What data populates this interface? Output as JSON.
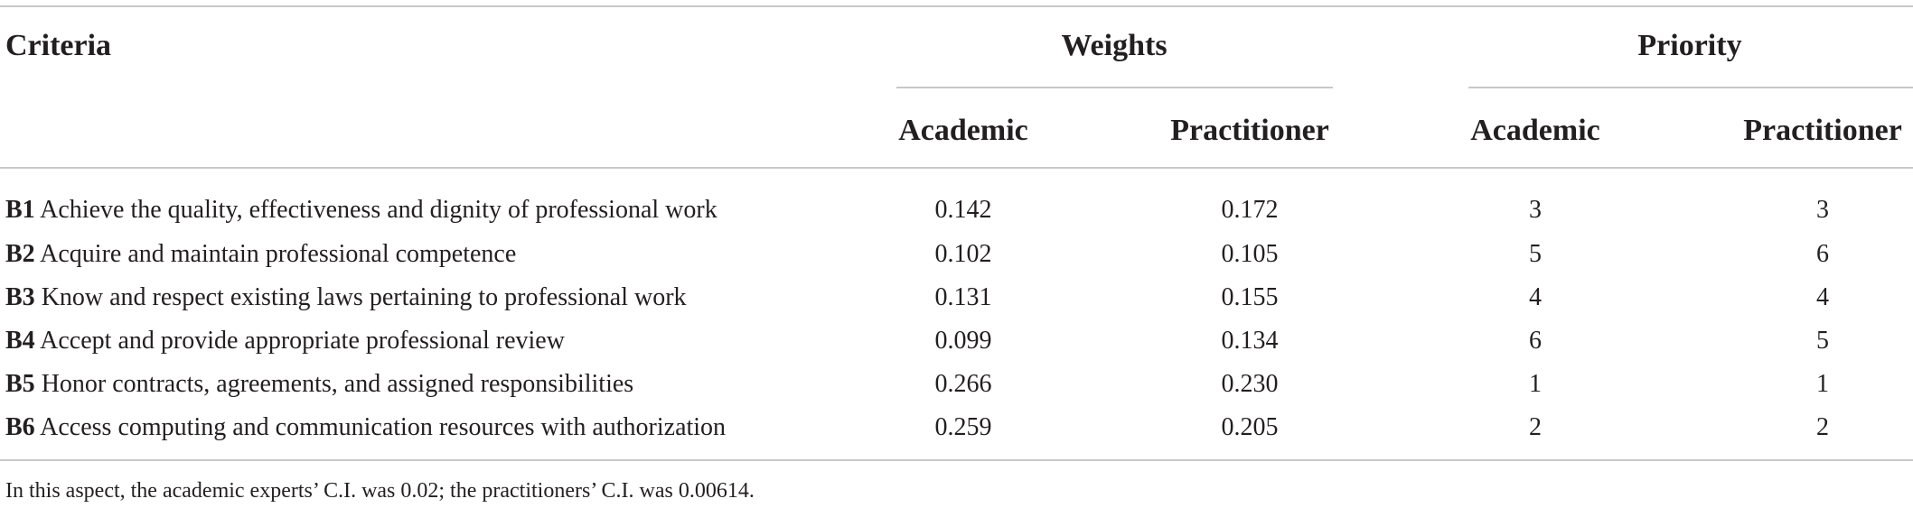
{
  "header": {
    "criteria": "Criteria",
    "weights_group": "Weights",
    "priority_group": "Priority",
    "sub_columns": [
      "Academic",
      "Practitioner",
      "Academic",
      "Practitioner"
    ]
  },
  "rows": [
    {
      "code": "B1",
      "label": "Achieve the quality, effectiveness and dignity of professional work",
      "weight_academic": "0.142",
      "weight_practitioner": "0.172",
      "priority_academic": "3",
      "priority_practitioner": "3"
    },
    {
      "code": "B2",
      "label": "Acquire and maintain professional competence",
      "weight_academic": "0.102",
      "weight_practitioner": "0.105",
      "priority_academic": "5",
      "priority_practitioner": "6"
    },
    {
      "code": "B3",
      "label": "Know and respect existing laws pertaining to professional work",
      "weight_academic": "0.131",
      "weight_practitioner": "0.155",
      "priority_academic": "4",
      "priority_practitioner": "4"
    },
    {
      "code": "B4",
      "label": "Accept and provide appropriate professional review",
      "weight_academic": "0.099",
      "weight_practitioner": "0.134",
      "priority_academic": "6",
      "priority_practitioner": "5"
    },
    {
      "code": "B5",
      "label": "Honor contracts, agreements, and assigned responsibilities",
      "weight_academic": "0.266",
      "weight_practitioner": "0.230",
      "priority_academic": "1",
      "priority_practitioner": "1"
    },
    {
      "code": "B6",
      "label": "Access computing and communication resources with authorization",
      "weight_academic": "0.259",
      "weight_practitioner": "0.205",
      "priority_academic": "2",
      "priority_practitioner": "2"
    }
  ],
  "footnote": "In this aspect, the academic experts’ C.I. was 0.02; the practitioners’ C.I. was 0.00614."
}
